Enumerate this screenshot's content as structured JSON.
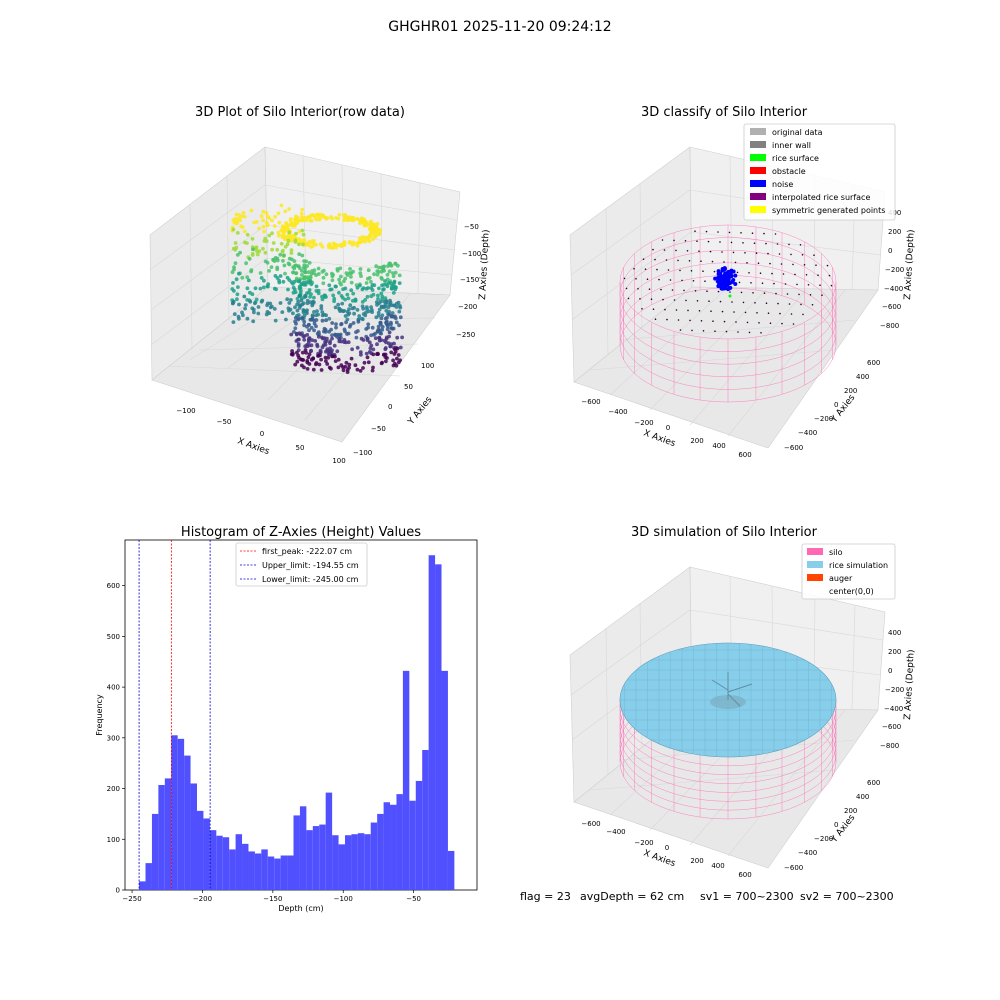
{
  "suptitle": "GHGHR01 2025-11-20 09:24:12",
  "status": {
    "flag": "flag = 23",
    "avg": "avgDepth = 62 cm",
    "sv1": "sv1 = 700~2300",
    "sv2": "sv2 = 700~2300"
  },
  "colors": {
    "hist_bar": "#4c4cff",
    "peak_line": "#ff0000",
    "limit_line": "#0000cc",
    "silo": "#ff69b4",
    "rice": "#87ceeb",
    "auger": "#ff4500",
    "noise": "#0000ff",
    "rice_surface": "#00ff00"
  },
  "chart_data": [
    {
      "type": "scatter",
      "title": "3D Plot of Silo Interior(row data)",
      "xlabel": "X Axies",
      "ylabel": "Y Axies",
      "zlabel": "Z Axies (Depth)",
      "xticks": [
        "−100",
        "−50",
        "0",
        "50",
        "100"
      ],
      "yticks": [
        "100",
        "50",
        "0",
        "−50",
        "−100"
      ],
      "zticks": [
        "−50",
        "−100",
        "−150",
        "−200",
        "−250"
      ],
      "colormap": "viridis"
    },
    {
      "type": "scatter",
      "title": "3D classify of Silo Interior",
      "xlabel": "X Axies",
      "ylabel": "Y Axies",
      "zlabel": "Z Axies (Depth)",
      "xticks": [
        "−600",
        "−400",
        "−200",
        "0",
        "200",
        "400",
        "600"
      ],
      "yticks": [
        "600",
        "400",
        "200",
        "0",
        "−200",
        "−400",
        "−600"
      ],
      "zticks": [
        "400",
        "200",
        "0",
        "−200",
        "−400",
        "−600",
        "−800"
      ],
      "legend": [
        {
          "label": "original data",
          "color": "#b0b0b0"
        },
        {
          "label": "inner wall",
          "color": "#808080"
        },
        {
          "label": "rice surface",
          "color": "#00ff00"
        },
        {
          "label": "obstacle",
          "color": "#ff0000"
        },
        {
          "label": "noise",
          "color": "#0000ff"
        },
        {
          "label": "interpolated rice surface",
          "color": "#800080"
        },
        {
          "label": "symmetric generated points",
          "color": "#ffff00"
        }
      ]
    },
    {
      "type": "bar",
      "title": "Histogram of Z-Axies (Height) Values",
      "xlabel": "Depth (cm)",
      "ylabel": "Frequency",
      "xlim": [
        -255,
        -5
      ],
      "ylim": [
        0,
        690
      ],
      "xticks": [
        -250,
        -200,
        -150,
        -100,
        -50
      ],
      "xtick_labels": [
        "−250",
        "−200",
        "−150",
        "−100",
        "−50"
      ],
      "yticks": [
        0,
        100,
        200,
        300,
        400,
        500,
        600
      ],
      "bin_start": -245,
      "bin_width": 4.57,
      "values": [
        17,
        53,
        150,
        207,
        220,
        305,
        298,
        265,
        210,
        156,
        141,
        118,
        107,
        104,
        80,
        110,
        91,
        76,
        72,
        80,
        66,
        62,
        68,
        68,
        147,
        165,
        118,
        126,
        129,
        192,
        108,
        90,
        108,
        110,
        112,
        110,
        133,
        150,
        173,
        168,
        189,
        432,
        176,
        215,
        276,
        660,
        642,
        432,
        77
      ],
      "lines": [
        {
          "label": "first_peak: -222.07 cm",
          "x": -222.07,
          "color": "#ff0000"
        },
        {
          "label": "Upper_limit: -194.55 cm",
          "x": -194.55,
          "color": "#0000cc"
        },
        {
          "label": "Lower_limit: -245.00 cm",
          "x": -245.0,
          "color": "#0000cc"
        }
      ]
    },
    {
      "type": "scatter",
      "title": "3D simulation of Silo Interior",
      "xlabel": "X Axies",
      "ylabel": "Y Axies",
      "zlabel": "Z Axies (Depth)",
      "xticks": [
        "−600",
        "−400",
        "−200",
        "0",
        "200",
        "400",
        "600"
      ],
      "yticks": [
        "600",
        "400",
        "200",
        "0",
        "−200",
        "−400",
        "−600"
      ],
      "zticks": [
        "400",
        "200",
        "0",
        "−200",
        "−400",
        "−600",
        "−800"
      ],
      "legend": [
        {
          "label": "silo",
          "color": "#ff69b4"
        },
        {
          "label": "rice simulation",
          "color": "#87ceeb"
        },
        {
          "label": "auger",
          "color": "#ff4500"
        },
        {
          "label": "center(0,0)",
          "color": ""
        }
      ]
    }
  ]
}
